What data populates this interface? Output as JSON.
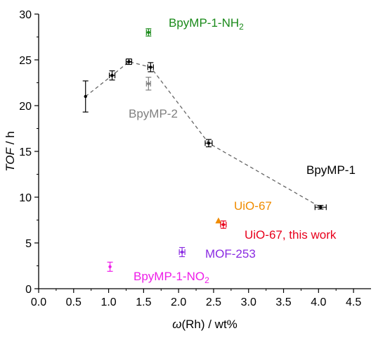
{
  "chart_data": {
    "type": "scatter",
    "title": "",
    "xlabel": {
      "symbol": "ω",
      "rest": "(Rh) / wt%"
    },
    "ylabel": {
      "symbol": "TOF",
      "rest": " / h"
    },
    "xlim": [
      0.0,
      4.75
    ],
    "ylim": [
      0,
      30
    ],
    "x_ticks": [
      "0.0",
      "0.5",
      "1.0",
      "1.5",
      "2.0",
      "2.5",
      "3.0",
      "3.5",
      "4.0",
      "4.5"
    ],
    "y_ticks": [
      "0",
      "5",
      "10",
      "15",
      "20",
      "25",
      "30"
    ],
    "grid": false,
    "series": [
      {
        "label": {
          "text": "BpyMP-1",
          "color": "#000000"
        },
        "color": "#000000",
        "connect": true,
        "points": [
          {
            "x": 0.67,
            "y": 21.0,
            "yerr": 1.7,
            "xerr": 0
          },
          {
            "x": 1.05,
            "y": 23.3,
            "yerr": 0.5,
            "xerr": 0.04
          },
          {
            "x": 1.29,
            "y": 24.8,
            "yerr": 0.3,
            "xerr": 0.04
          },
          {
            "x": 1.6,
            "y": 24.2,
            "yerr": 0.5,
            "xerr": 0.04
          },
          {
            "x": 2.43,
            "y": 15.9,
            "yerr": 0.4,
            "xerr": 0.05
          },
          {
            "x": 4.03,
            "y": 8.9,
            "yerr": 0.2,
            "xerr": 0.08
          }
        ]
      },
      {
        "label": {
          "text": "BpyMP-2",
          "color": "#808080"
        },
        "color": "#808080",
        "points": [
          {
            "x": 1.57,
            "y": 22.4,
            "yerr": 0.7,
            "xerr": 0.03
          }
        ]
      },
      {
        "label": {
          "text": "BpyMP-1-NH",
          "sub": "2",
          "color": "#1a8a1a"
        },
        "color": "#1a8a1a",
        "points": [
          {
            "x": 1.57,
            "y": 28.0,
            "yerr": 0.4,
            "xerr": 0.03
          }
        ]
      },
      {
        "label": {
          "text": "UiO-67",
          "color": "#f08c00"
        },
        "color": "#f08c00",
        "marker": "triangle",
        "points": [
          {
            "x": 2.57,
            "y": 7.4,
            "yerr": 0,
            "xerr": 0
          }
        ]
      },
      {
        "label": {
          "text": "UiO-67, this work",
          "color": "#e8001c"
        },
        "color": "#e8001c",
        "points": [
          {
            "x": 2.64,
            "y": 7.0,
            "yerr": 0.4,
            "xerr": 0.04
          }
        ]
      },
      {
        "label": {
          "text": "MOF-253",
          "color": "#8a2be2"
        },
        "color": "#8a2be2",
        "points": [
          {
            "x": 2.05,
            "y": 4.0,
            "yerr": 0.5,
            "xerr": 0.04
          }
        ]
      },
      {
        "label": {
          "text": "BpyMP-1-NO",
          "sub": "2",
          "color": "#ee1ee8"
        },
        "color": "#ee1ee8",
        "points": [
          {
            "x": 1.02,
            "y": 2.4,
            "yerr": 0.5,
            "xerr": 0
          }
        ]
      }
    ]
  }
}
